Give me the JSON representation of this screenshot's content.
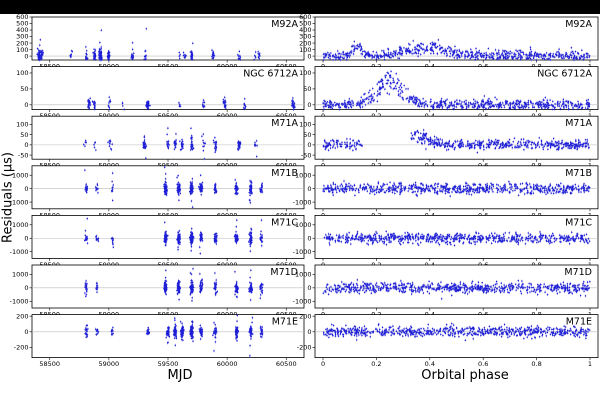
{
  "figure": {
    "ylabel": "Residuals (µs)",
    "xlabel_left": "MJD",
    "xlabel_right": "Orbital phase",
    "marker_color": "#1f1fd6"
  },
  "chart_data": [
    {
      "type": "scatter",
      "title": "M92A",
      "xlabel": "MJD",
      "ylabel": "Residuals (µs)",
      "xlim": [
        58350,
        60650
      ],
      "ylim": [
        -60,
        600
      ],
      "xticks": [
        58500,
        59000,
        59500,
        60000,
        60500
      ],
      "yticks": [
        0,
        100,
        200,
        300,
        400,
        500,
        600
      ],
      "clusters": [
        [
          58410,
          60
        ],
        [
          58430,
          20
        ],
        [
          58680,
          10
        ],
        [
          58810,
          15
        ],
        [
          58880,
          40
        ],
        [
          58930,
          80
        ],
        [
          59000,
          30
        ],
        [
          59200,
          20
        ],
        [
          59310,
          10
        ],
        [
          59600,
          5
        ],
        [
          59640,
          10
        ],
        [
          59700,
          30
        ],
        [
          59880,
          20
        ],
        [
          60100,
          10
        ],
        [
          60240,
          5
        ],
        [
          60270,
          10
        ]
      ]
    },
    {
      "type": "scatter",
      "title": "M92A",
      "xlabel": "Orbital phase",
      "ylabel": "Residuals (µs)",
      "xlim": [
        -0.03,
        1.03
      ],
      "ylim": [
        -60,
        600
      ],
      "xticks": [
        0.0,
        0.2,
        0.4,
        0.6,
        0.8,
        1.0
      ],
      "yticks": [
        0,
        100,
        200,
        300,
        400,
        500,
        600
      ],
      "features": [
        {
          "phase": 0.13,
          "peak": 200,
          "width": 0.015
        },
        {
          "phase": 0.38,
          "peak": 150,
          "width": 0.08
        }
      ]
    },
    {
      "type": "scatter",
      "title": "NGC 6712A",
      "xlabel": "MJD",
      "ylabel": "Residuals (µs)",
      "xlim": [
        58350,
        60650
      ],
      "ylim": [
        -15,
        120
      ],
      "xticks": [
        58500,
        59000,
        59500,
        60000,
        60500
      ],
      "yticks": [
        0,
        50,
        100
      ],
      "clusters": [
        [
          58830,
          30
        ],
        [
          58880,
          15
        ],
        [
          59000,
          10
        ],
        [
          59120,
          5
        ],
        [
          59330,
          40
        ],
        [
          59600,
          5
        ],
        [
          59800,
          10
        ],
        [
          59980,
          20
        ],
        [
          60150,
          10
        ],
        [
          60560,
          30
        ]
      ]
    },
    {
      "type": "scatter",
      "title": "NGC 6712A",
      "xlabel": "Orbital phase",
      "ylabel": "Residuals (µs)",
      "xlim": [
        -0.03,
        1.03
      ],
      "ylim": [
        -15,
        120
      ],
      "xticks": [
        0.0,
        0.2,
        0.4,
        0.6,
        0.8,
        1.0
      ],
      "yticks": [
        0,
        50,
        100
      ],
      "features": [
        {
          "phase": 0.25,
          "peak": 90,
          "width": 0.05
        }
      ]
    },
    {
      "type": "scatter",
      "title": "M71A",
      "xlabel": "MJD",
      "ylabel": "Residuals (µs)",
      "xlim": [
        58350,
        60650
      ],
      "ylim": [
        -70,
        140
      ],
      "xticks": [
        58500,
        59000,
        59500,
        60000,
        60500
      ],
      "yticks": [
        -50,
        0,
        50,
        100
      ],
      "clusters": [
        [
          58800,
          5
        ],
        [
          58880,
          5
        ],
        [
          59010,
          10
        ],
        [
          59300,
          30
        ],
        [
          59500,
          15
        ],
        [
          59560,
          20
        ],
        [
          59620,
          20
        ],
        [
          59700,
          30
        ],
        [
          59800,
          10
        ],
        [
          59900,
          20
        ],
        [
          60100,
          30
        ],
        [
          60240,
          10
        ]
      ]
    },
    {
      "type": "scatter",
      "title": "M71A",
      "xlabel": "Orbital phase",
      "ylabel": "Residuals (µs)",
      "xlim": [
        -0.03,
        1.03
      ],
      "ylim": [
        -70,
        140
      ],
      "xticks": [
        0.0,
        0.2,
        0.4,
        0.6,
        0.8,
        1.0
      ],
      "yticks": [
        -50,
        0,
        50,
        100
      ],
      "features": [
        {
          "phase": 0.35,
          "peak": 60,
          "width": 0.04
        }
      ],
      "gap": [
        0.15,
        0.33
      ]
    },
    {
      "type": "scatter",
      "title": "M71B",
      "xlabel": "MJD",
      "ylabel": "Residuals (µs)",
      "xlim": [
        58350,
        60650
      ],
      "ylim": [
        -1500,
        1700
      ],
      "xticks": [
        58500,
        59000,
        59500,
        60000,
        60500
      ],
      "yticks": [
        -1000,
        0,
        1000
      ],
      "clusters": [
        [
          58810,
          20
        ],
        [
          58900,
          10
        ],
        [
          59030,
          10
        ],
        [
          59480,
          60
        ],
        [
          59590,
          60
        ],
        [
          59700,
          80
        ],
        [
          59780,
          40
        ],
        [
          59900,
          30
        ],
        [
          60080,
          50
        ],
        [
          60200,
          40
        ],
        [
          60290,
          20
        ]
      ]
    },
    {
      "type": "scatter",
      "title": "M71B",
      "xlabel": "Orbital phase",
      "ylabel": "Residuals (µs)",
      "xlim": [
        -0.03,
        1.03
      ],
      "ylim": [
        -1500,
        1700
      ],
      "xticks": [
        0.0,
        0.2,
        0.4,
        0.6,
        0.8,
        1.0
      ],
      "yticks": [
        -1000,
        0,
        1000
      ]
    },
    {
      "type": "scatter",
      "title": "M71C",
      "xlabel": "MJD",
      "ylabel": "Residuals (µs)",
      "xlim": [
        58350,
        60650
      ],
      "ylim": [
        -1500,
        1700
      ],
      "xticks": [
        58500,
        59000,
        59500,
        60000,
        60500
      ],
      "yticks": [
        -1000,
        0,
        1000
      ],
      "clusters": [
        [
          58810,
          20
        ],
        [
          58900,
          10
        ],
        [
          59030,
          10
        ],
        [
          59480,
          60
        ],
        [
          59590,
          60
        ],
        [
          59700,
          80
        ],
        [
          59780,
          40
        ],
        [
          59900,
          30
        ],
        [
          60080,
          50
        ],
        [
          60200,
          40
        ],
        [
          60290,
          20
        ]
      ]
    },
    {
      "type": "scatter",
      "title": "M71C",
      "xlabel": "Orbital phase",
      "ylabel": "Residuals (µs)",
      "xlim": [
        -0.03,
        1.03
      ],
      "ylim": [
        -1500,
        1700
      ],
      "xticks": [
        0.0,
        0.2,
        0.4,
        0.6,
        0.8,
        1.0
      ],
      "yticks": [
        -1000,
        0,
        1000
      ]
    },
    {
      "type": "scatter",
      "title": "M71D",
      "xlabel": "MJD",
      "ylabel": "Residuals (µs)",
      "xlim": [
        58350,
        60650
      ],
      "ylim": [
        -1500,
        1700
      ],
      "xticks": [
        58500,
        59000,
        59500,
        60000,
        60500
      ],
      "yticks": [
        -1000,
        0,
        1000
      ],
      "clusters": [
        [
          58810,
          20
        ],
        [
          58900,
          10
        ],
        [
          59480,
          60
        ],
        [
          59590,
          60
        ],
        [
          59700,
          80
        ],
        [
          59780,
          40
        ],
        [
          59900,
          30
        ],
        [
          60080,
          50
        ],
        [
          60200,
          40
        ],
        [
          60290,
          20
        ]
      ]
    },
    {
      "type": "scatter",
      "title": "M71D",
      "xlabel": "Orbital phase",
      "ylabel": "Residuals (µs)",
      "xlim": [
        -0.03,
        1.03
      ],
      "ylim": [
        -1500,
        1700
      ],
      "xticks": [
        0.0,
        0.2,
        0.4,
        0.6,
        0.8,
        1.0
      ],
      "yticks": [
        -1000,
        0,
        1000
      ]
    },
    {
      "type": "scatter",
      "title": "M71E",
      "xlabel": "MJD",
      "ylabel": "Residuals (µs)",
      "xlim": [
        58350,
        60650
      ],
      "ylim": [
        -330,
        220
      ],
      "xticks": [
        58500,
        59000,
        59500,
        60000,
        60500
      ],
      "yticks": [
        -200,
        0,
        200
      ],
      "clusters": [
        [
          58810,
          20
        ],
        [
          58900,
          10
        ],
        [
          59030,
          10
        ],
        [
          59330,
          20
        ],
        [
          59500,
          40
        ],
        [
          59560,
          60
        ],
        [
          59620,
          60
        ],
        [
          59700,
          80
        ],
        [
          59780,
          40
        ],
        [
          59900,
          30
        ],
        [
          60080,
          50
        ],
        [
          60200,
          40
        ],
        [
          60290,
          20
        ]
      ]
    },
    {
      "type": "scatter",
      "title": "M71E",
      "xlabel": "Orbital phase",
      "ylabel": "Residuals (µs)",
      "xlim": [
        -0.03,
        1.03
      ],
      "ylim": [
        -330,
        220
      ],
      "xticks": [
        0.0,
        0.2,
        0.4,
        0.6,
        0.8,
        1.0
      ],
      "yticks": [
        -200,
        0,
        200
      ]
    }
  ]
}
